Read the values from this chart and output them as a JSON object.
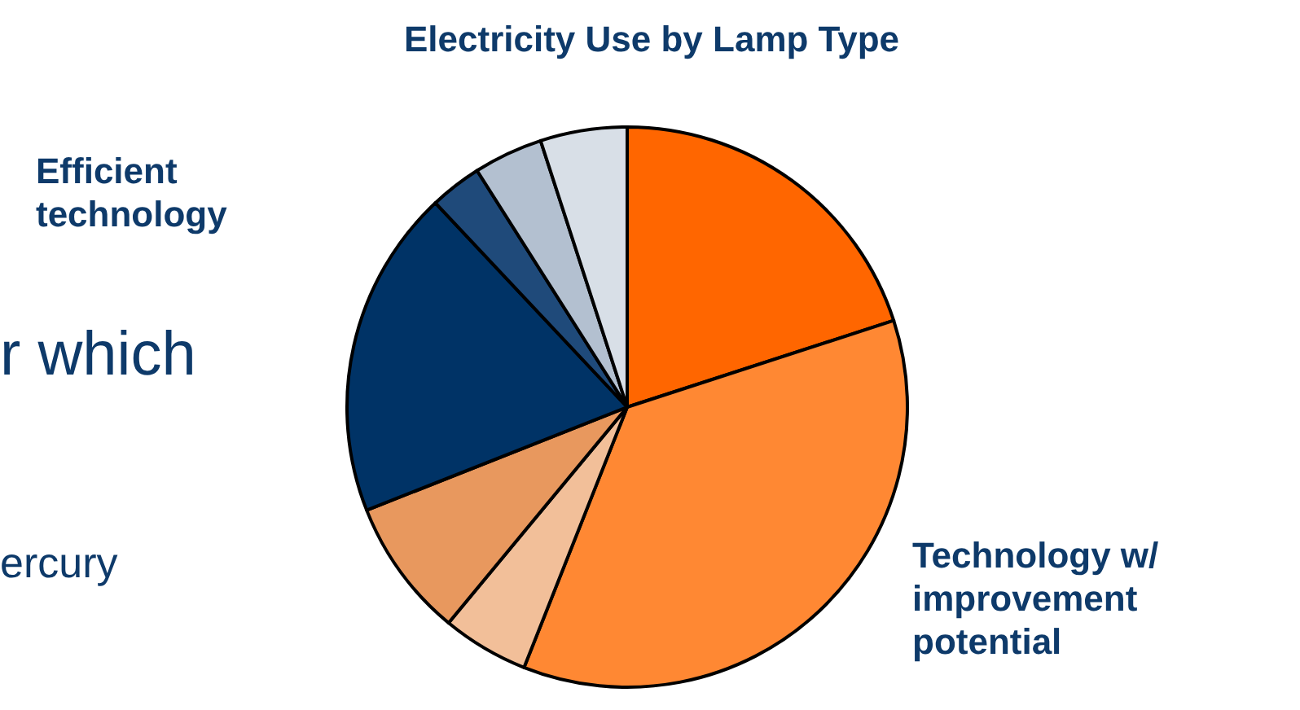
{
  "chart_data": {
    "type": "pie",
    "title": "Electricity Use by Lamp Type",
    "categories": [
      null,
      null,
      null,
      null,
      null,
      null,
      null,
      null
    ],
    "values": [
      20,
      36,
      5,
      8,
      19,
      3,
      4,
      5
    ],
    "colors": [
      "#ff6600",
      "#ff8833",
      "#f2bf99",
      "#e8985e",
      "#003366",
      "#1f4a7a",
      "#b3c0d0",
      "#d8dfe7"
    ],
    "annotations": [
      "Efficient technology",
      "Technology w/ improvement potential",
      "r which",
      "ercury"
    ]
  }
}
